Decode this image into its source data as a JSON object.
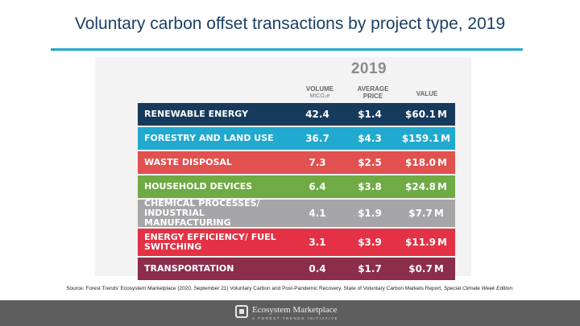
{
  "slide_title": "Voluntary carbon offset transactions by project type, 2019",
  "table": {
    "year": "2019",
    "headers": {
      "volume": "VOLUME",
      "volume_unit": "MtCO₂e",
      "average_price_line1": "AVERAGE",
      "average_price_line2": "PRICE",
      "value": "VALUE"
    },
    "rows": [
      {
        "category": "RENEWABLE ENERGY",
        "volume": "42.4",
        "price": "$1.4",
        "value": "$60.1",
        "unit": "M",
        "color": "#163a5c"
      },
      {
        "category": "FORESTRY AND LAND USE",
        "volume": "36.7",
        "price": "$4.3",
        "value": "$159.1",
        "unit": "M",
        "color": "#21a9cf"
      },
      {
        "category": "WASTE DISPOSAL",
        "volume": "7.3",
        "price": "$2.5",
        "value": "$18.0",
        "unit": "M",
        "color": "#e0514f"
      },
      {
        "category": "HOUSEHOLD DEVICES",
        "volume": "6.4",
        "price": "$3.8",
        "value": "$24.8",
        "unit": "M",
        "color": "#6faa45"
      },
      {
        "category": "CHEMICAL PROCESSES/ INDUSTRIAL MANUFACTURING",
        "volume": "4.1",
        "price": "$1.9",
        "value": "$7.7",
        "unit": "M",
        "color": "#a6a6a8"
      },
      {
        "category": "ENERGY EFFICIENCY/ FUEL SWITCHING",
        "volume": "3.1",
        "price": "$3.9",
        "value": "$11.9",
        "unit": "M",
        "color": "#e33145"
      },
      {
        "category": "TRANSPORTATION",
        "volume": "0.4",
        "price": "$1.7",
        "value": "$0.7",
        "unit": "M",
        "color": "#8b2d4b"
      }
    ]
  },
  "source": {
    "text": "Source: Forest Trends' Ecosystem Marketplace (2020, September 21) Voluntary Carbon and Post-Pandemic Recovery. State of Voluntary Carbon Markets Report,",
    "italic": "Special Climate Week Edition."
  },
  "footer": {
    "logo_name": "Ecosystem Marketplace",
    "logo_tagline": "A FOREST TRENDS INITIATIVE"
  }
}
